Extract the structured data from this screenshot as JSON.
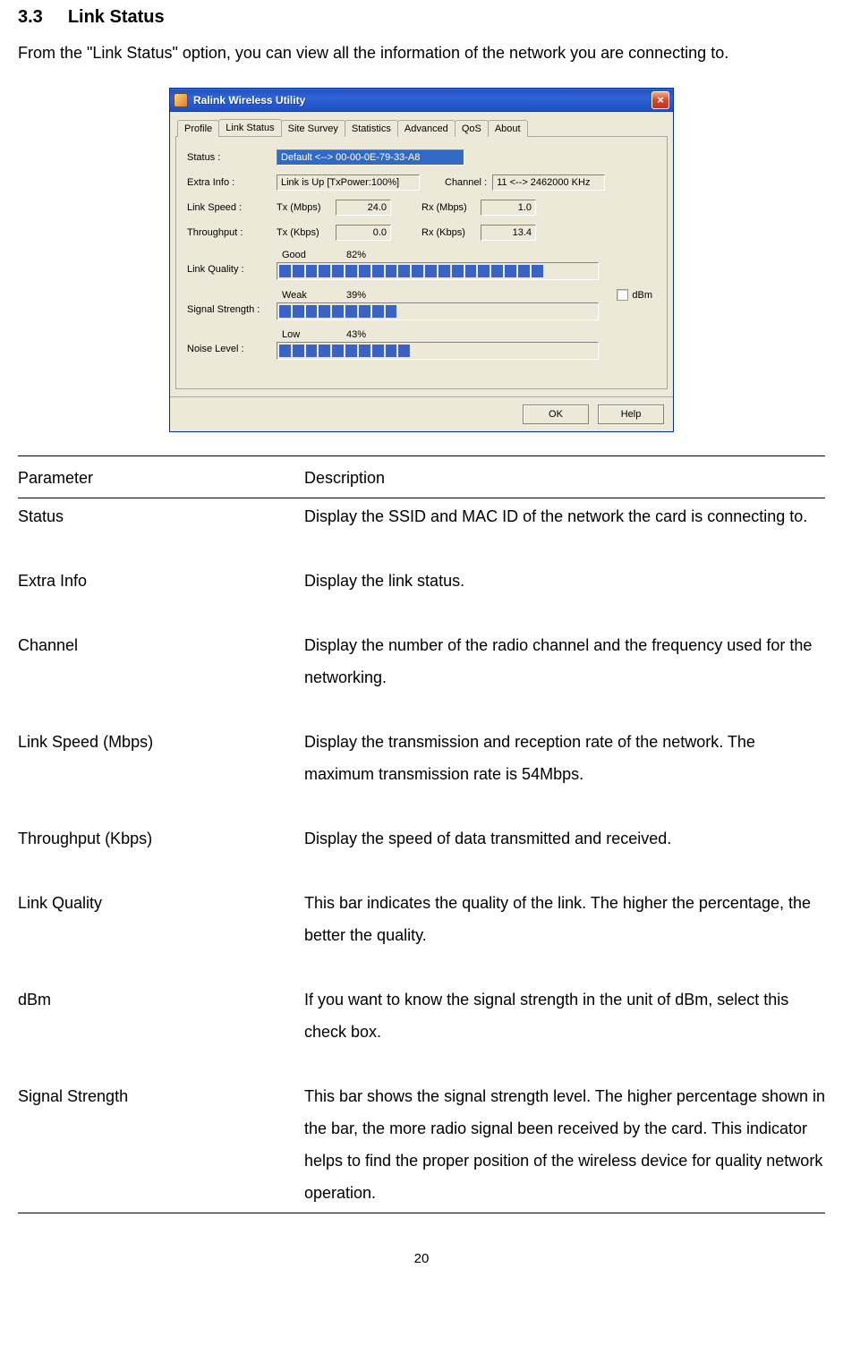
{
  "heading": {
    "number": "3.3",
    "title": "Link Status"
  },
  "intro": "From the \"Link Status\" option, you can view all the information of the network you are connecting to.",
  "window": {
    "title": "Ralink Wireless Utility",
    "tabs": [
      "Profile",
      "Link Status",
      "Site Survey",
      "Statistics",
      "Advanced",
      "QoS",
      "About"
    ],
    "active_tab": 1,
    "labels": {
      "status": "Status :",
      "extra": "Extra Info :",
      "channel": "Channel :",
      "linkspeed": "Link Speed :",
      "throughput": "Throughput :",
      "linkquality": "Link Quality :",
      "signal": "Signal Strength :",
      "noise": "Noise Level :",
      "tx_mbps": "Tx (Mbps)",
      "rx_mbps": "Rx (Mbps)",
      "tx_kbps": "Tx (Kbps)",
      "rx_kbps": "Rx (Kbps)",
      "good": "Good",
      "weak": "Weak",
      "low": "Low",
      "dbm": "dBm"
    },
    "values": {
      "status": "Default <--> 00-00-0E-79-33-A8",
      "extra": "Link is Up [TxPower:100%]",
      "channel": "11 <--> 2462000 KHz",
      "tx_mbps": "24.0",
      "rx_mbps": "1.0",
      "tx_kbps": "0.0",
      "rx_kbps": "13.4",
      "quality_pct": "82%",
      "signal_pct": "39%",
      "noise_pct": "43%"
    },
    "bars": {
      "total_segments": 24,
      "quality_fill": 20,
      "signal_fill": 9,
      "noise_fill": 10,
      "fill_color": "#3a63c8",
      "empty_color": "#ece9d8"
    },
    "buttons": {
      "ok": "OK",
      "help": "Help"
    }
  },
  "table": {
    "headers": {
      "param": "Parameter",
      "desc": "Description"
    },
    "rows": [
      {
        "param": "Status",
        "desc": "Display the SSID and MAC ID of the network the card is connecting to."
      },
      {
        "param": "Extra Info",
        "desc": "Display the link status."
      },
      {
        "param": "Channel",
        "desc": "Display the number of the radio channel and the frequency used for the networking."
      },
      {
        "param": "Link Speed (Mbps)",
        "desc": "Display the transmission and reception rate of the network. The maximum transmission rate is 54Mbps."
      },
      {
        "param": "Throughput (Kbps)",
        "desc": "Display the speed of data transmitted and received."
      },
      {
        "param": "Link Quality",
        "desc": "This bar indicates the quality of the link. The higher the percentage, the better the quality."
      },
      {
        "param": "dBm",
        "desc": "If you want to know the signal strength in the unit of dBm, select this check box."
      },
      {
        "param": "Signal Strength",
        "desc": "This bar shows the signal strength level. The higher percentage shown in the bar, the more radio signal been received by the card. This indicator helps to find the proper position of the wireless device for quality network operation."
      }
    ]
  },
  "pagenum": "20"
}
